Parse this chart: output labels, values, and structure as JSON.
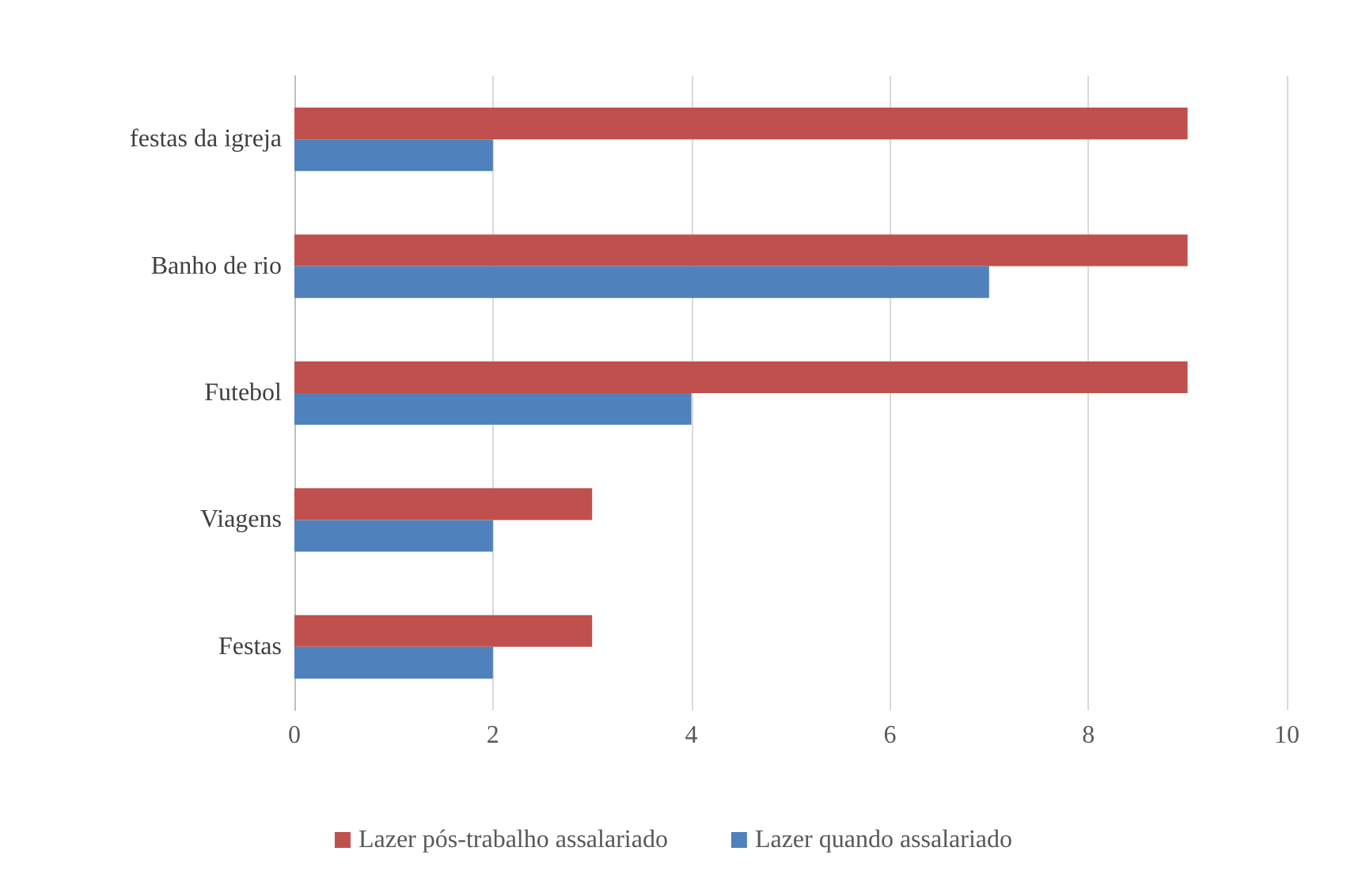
{
  "chart_data": {
    "type": "bar",
    "orientation": "horizontal",
    "categories": [
      "festas da igreja",
      "Banho de rio",
      "Futebol",
      "Viagens",
      "Festas"
    ],
    "series": [
      {
        "name": "Lazer pós-trabalho assalariado",
        "color": "#c0504d",
        "values": [
          9,
          9,
          9,
          3,
          3
        ]
      },
      {
        "name": "Lazer quando assalariado",
        "color": "#4f81bd",
        "values": [
          2,
          7,
          4,
          2,
          2
        ]
      }
    ],
    "xlim": [
      0,
      10
    ],
    "xticks": [
      0,
      2,
      4,
      6,
      8,
      10
    ],
    "grid": "x",
    "legend": "bottom"
  }
}
